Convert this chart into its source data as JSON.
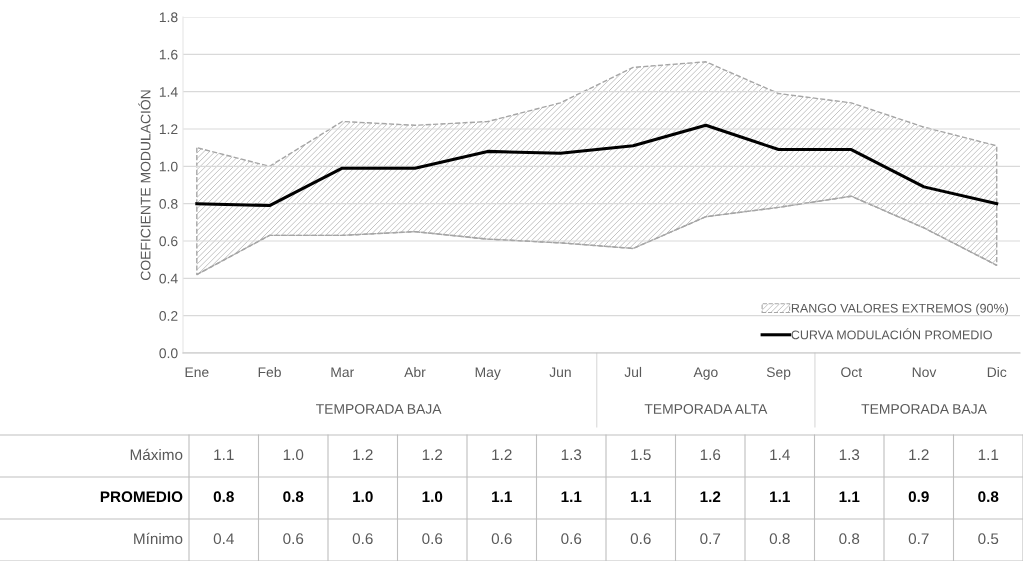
{
  "chart_data": {
    "type": "line",
    "ylabel": "COEFICIENTE MODULACIÓN",
    "categories": [
      "Ene",
      "Feb",
      "Mar",
      "Abr",
      "May",
      "Jun",
      "Jul",
      "Ago",
      "Sep",
      "Oct",
      "Nov",
      "Dic"
    ],
    "ylim": [
      0,
      1.8
    ],
    "yticks": [
      {
        "value": 0,
        "label": "0.0"
      },
      0.2,
      0.4,
      0.6,
      0.8,
      {
        "value": 1,
        "label": "1.0"
      },
      1.2,
      1.4,
      1.6,
      1.8
    ],
    "grid": "y",
    "legend": "bottom right",
    "series": [
      {
        "type": "area",
        "name": "RANGO VALORES EXTREMOS (90%)",
        "color": "#a6a6a6",
        "line_style": "dashed",
        "values": [
          1.1,
          1.0,
          1.24,
          1.22,
          1.24,
          1.34,
          1.53,
          1.56,
          1.39,
          1.34,
          1.21,
          1.11
        ],
        "value_labels": [
          "1.1",
          "1.0",
          "1.2",
          "1.2",
          "1.2",
          "1.3",
          "1.5",
          "1.6",
          "1.4",
          "1.3",
          "1.2",
          "1.1"
        ]
      },
      {
        "name": "CURVA MODULACIÓN PROMEDIO",
        "color": "#000000",
        "values": [
          0.8,
          0.79,
          0.99,
          0.99,
          1.08,
          1.07,
          1.11,
          1.22,
          1.09,
          1.09,
          0.89,
          0.8
        ],
        "value_labels": [
          "0.8",
          "0.8",
          "1.0",
          "1.0",
          "1.1",
          "1.1",
          "1.1",
          "1.2",
          "1.1",
          "1.1",
          "0.9",
          "0.8"
        ]
      },
      {
        "color": "#a6a6a6",
        "line_style": "dashed",
        "values": [
          0.42,
          0.63,
          0.63,
          0.65,
          0.61,
          0.59,
          0.56,
          0.73,
          0.78,
          0.84,
          0.67,
          0.47
        ],
        "value_labels": [
          "0.4",
          "0.6",
          "0.6",
          "0.6",
          "0.6",
          "0.6",
          "0.6",
          "0.7",
          "0.8",
          "0.8",
          "0.7",
          "0.5"
        ]
      }
    ],
    "annotations": [
      "Máximo",
      "PROMEDIO",
      "Mínimo",
      "TEMPORADA BAJA",
      "TEMPORADA ALTA",
      "TEMPORADA BAJA"
    ]
  }
}
